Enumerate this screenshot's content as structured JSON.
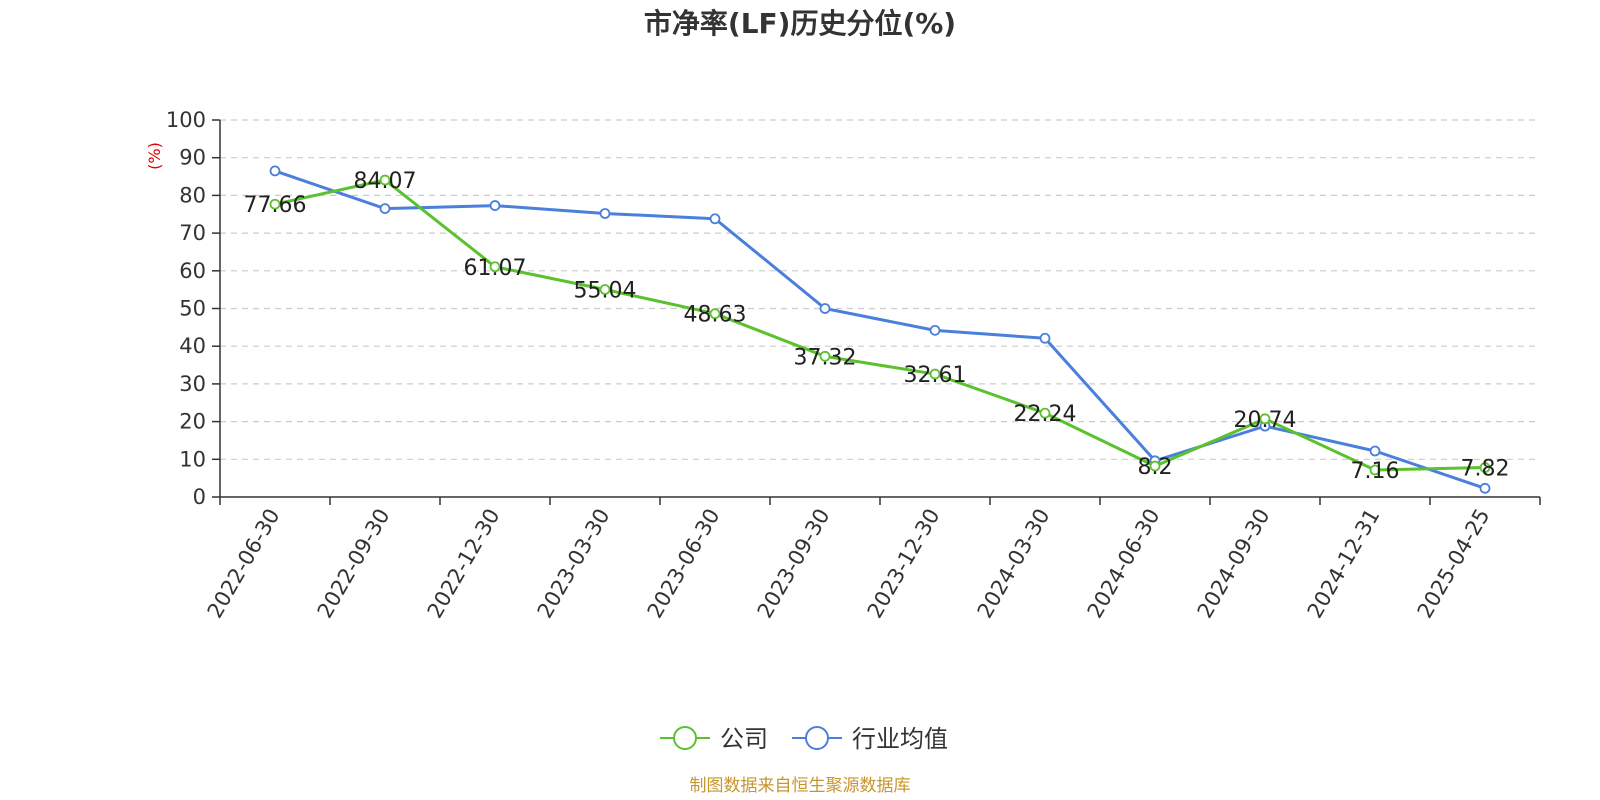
{
  "chart_data": {
    "type": "line",
    "title": "市净率(LF)历史分位(%)",
    "ylabel": "(%)",
    "xlabel": "",
    "ylim": [
      0,
      100
    ],
    "yticks": [
      0,
      10,
      20,
      30,
      40,
      50,
      60,
      70,
      80,
      90,
      100
    ],
    "grid": true,
    "legend_position": "bottom",
    "categories": [
      "2022-06-30",
      "2022-09-30",
      "2022-12-30",
      "2023-03-30",
      "2023-06-30",
      "2023-09-30",
      "2023-12-30",
      "2024-03-30",
      "2024-06-30",
      "2024-09-30",
      "2024-12-31",
      "2025-04-25"
    ],
    "series": [
      {
        "name": "公司",
        "color": "#5ac12f",
        "values": [
          77.66,
          84.07,
          61.07,
          55.04,
          48.63,
          37.32,
          32.61,
          22.24,
          8.2,
          20.74,
          7.16,
          7.82
        ],
        "labels": [
          "77.66",
          "84.07",
          "61.07",
          "55.04",
          "48.63",
          "37.32",
          "32.61",
          "22.24",
          "8.2",
          "20.74",
          "7.16",
          "7.82"
        ]
      },
      {
        "name": "行业均值",
        "color": "#4a7fdc",
        "values": [
          86.5,
          76.5,
          77.3,
          75.2,
          73.8,
          50.0,
          44.2,
          42.1,
          9.6,
          18.8,
          12.2,
          2.3
        ]
      }
    ],
    "source": "制图数据来自恒生聚源数据库",
    "source_color": "#c8952e"
  }
}
